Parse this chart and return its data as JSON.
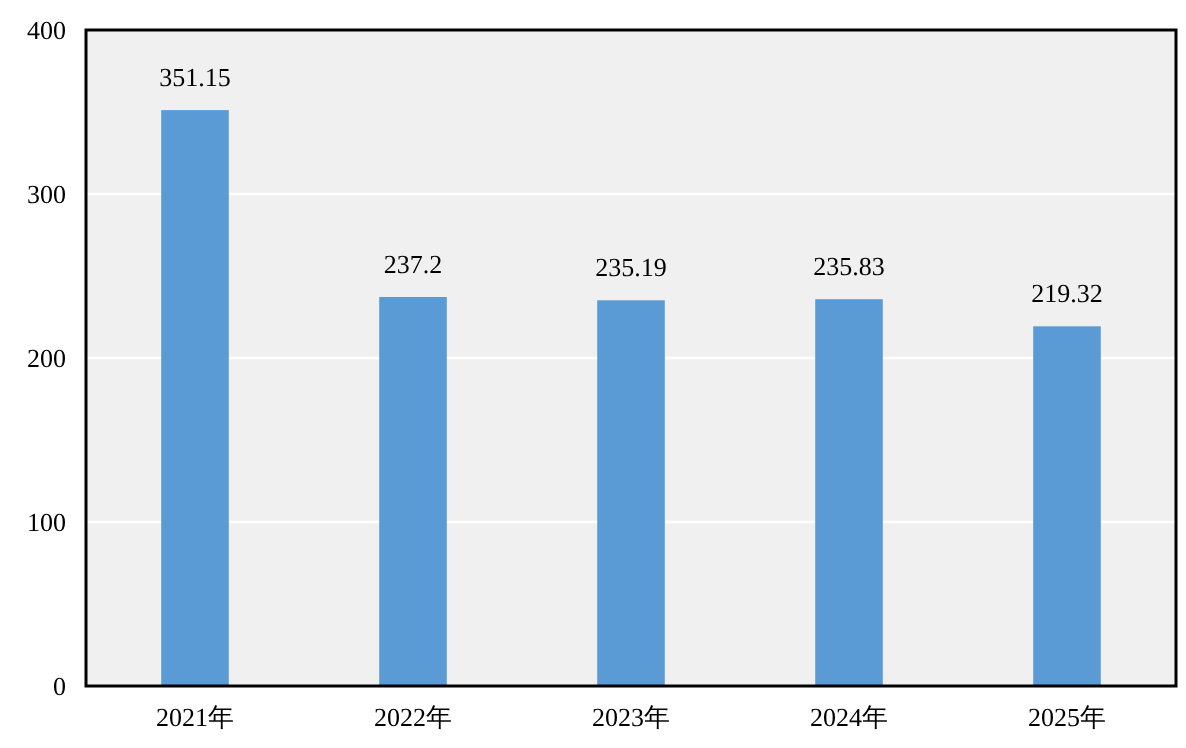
{
  "chart_data": {
    "type": "bar",
    "categories": [
      "2021年",
      "2022年",
      "2023年",
      "2024年",
      "2025年"
    ],
    "values": [
      351.15,
      237.2,
      235.19,
      235.83,
      219.32
    ],
    "color": "#5b9bd5",
    "ylim": [
      0,
      400
    ],
    "yticks": [
      0,
      100,
      200,
      300,
      400
    ],
    "grid": "y",
    "data_labels": true
  }
}
